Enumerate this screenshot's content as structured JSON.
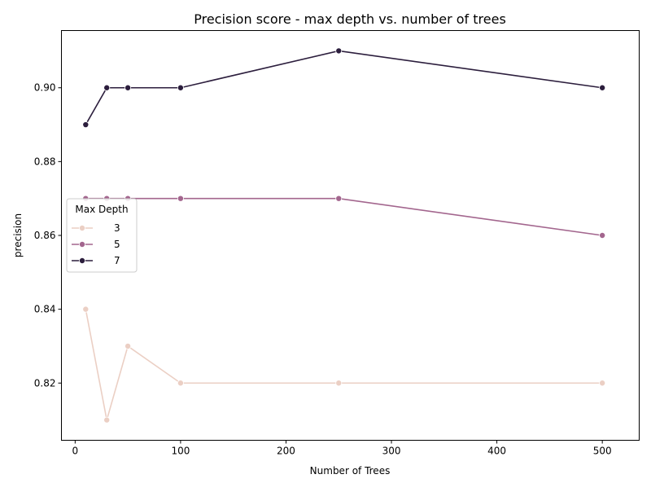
{
  "chart_data": {
    "type": "line",
    "title": "Precision score - max depth vs. number of trees",
    "xlabel": "Number of Trees",
    "ylabel": "precision",
    "xlim": [
      -13,
      535
    ],
    "ylim": [
      0.8045,
      0.9155
    ],
    "xticks": [
      0,
      100,
      200,
      300,
      400,
      500
    ],
    "yticks": [
      0.82,
      0.84,
      0.86,
      0.88,
      0.9
    ],
    "ytick_labels": [
      "0.82",
      "0.84",
      "0.86",
      "0.88",
      "0.90"
    ],
    "grid": false,
    "legend": {
      "title": "Max Depth",
      "placement": "center-left"
    },
    "x": [
      10,
      30,
      50,
      100,
      250,
      500
    ],
    "series": [
      {
        "name": "3",
        "color": "#ebcfc4",
        "values": [
          0.84,
          0.81,
          0.83,
          0.82,
          0.82,
          0.82
        ]
      },
      {
        "name": "5",
        "color": "#a3668e",
        "values": [
          0.87,
          0.87,
          0.87,
          0.87,
          0.87,
          0.86
        ]
      },
      {
        "name": "7",
        "color": "#2c1e3d",
        "values": [
          0.89,
          0.9,
          0.9,
          0.9,
          0.91,
          0.9
        ]
      }
    ]
  }
}
